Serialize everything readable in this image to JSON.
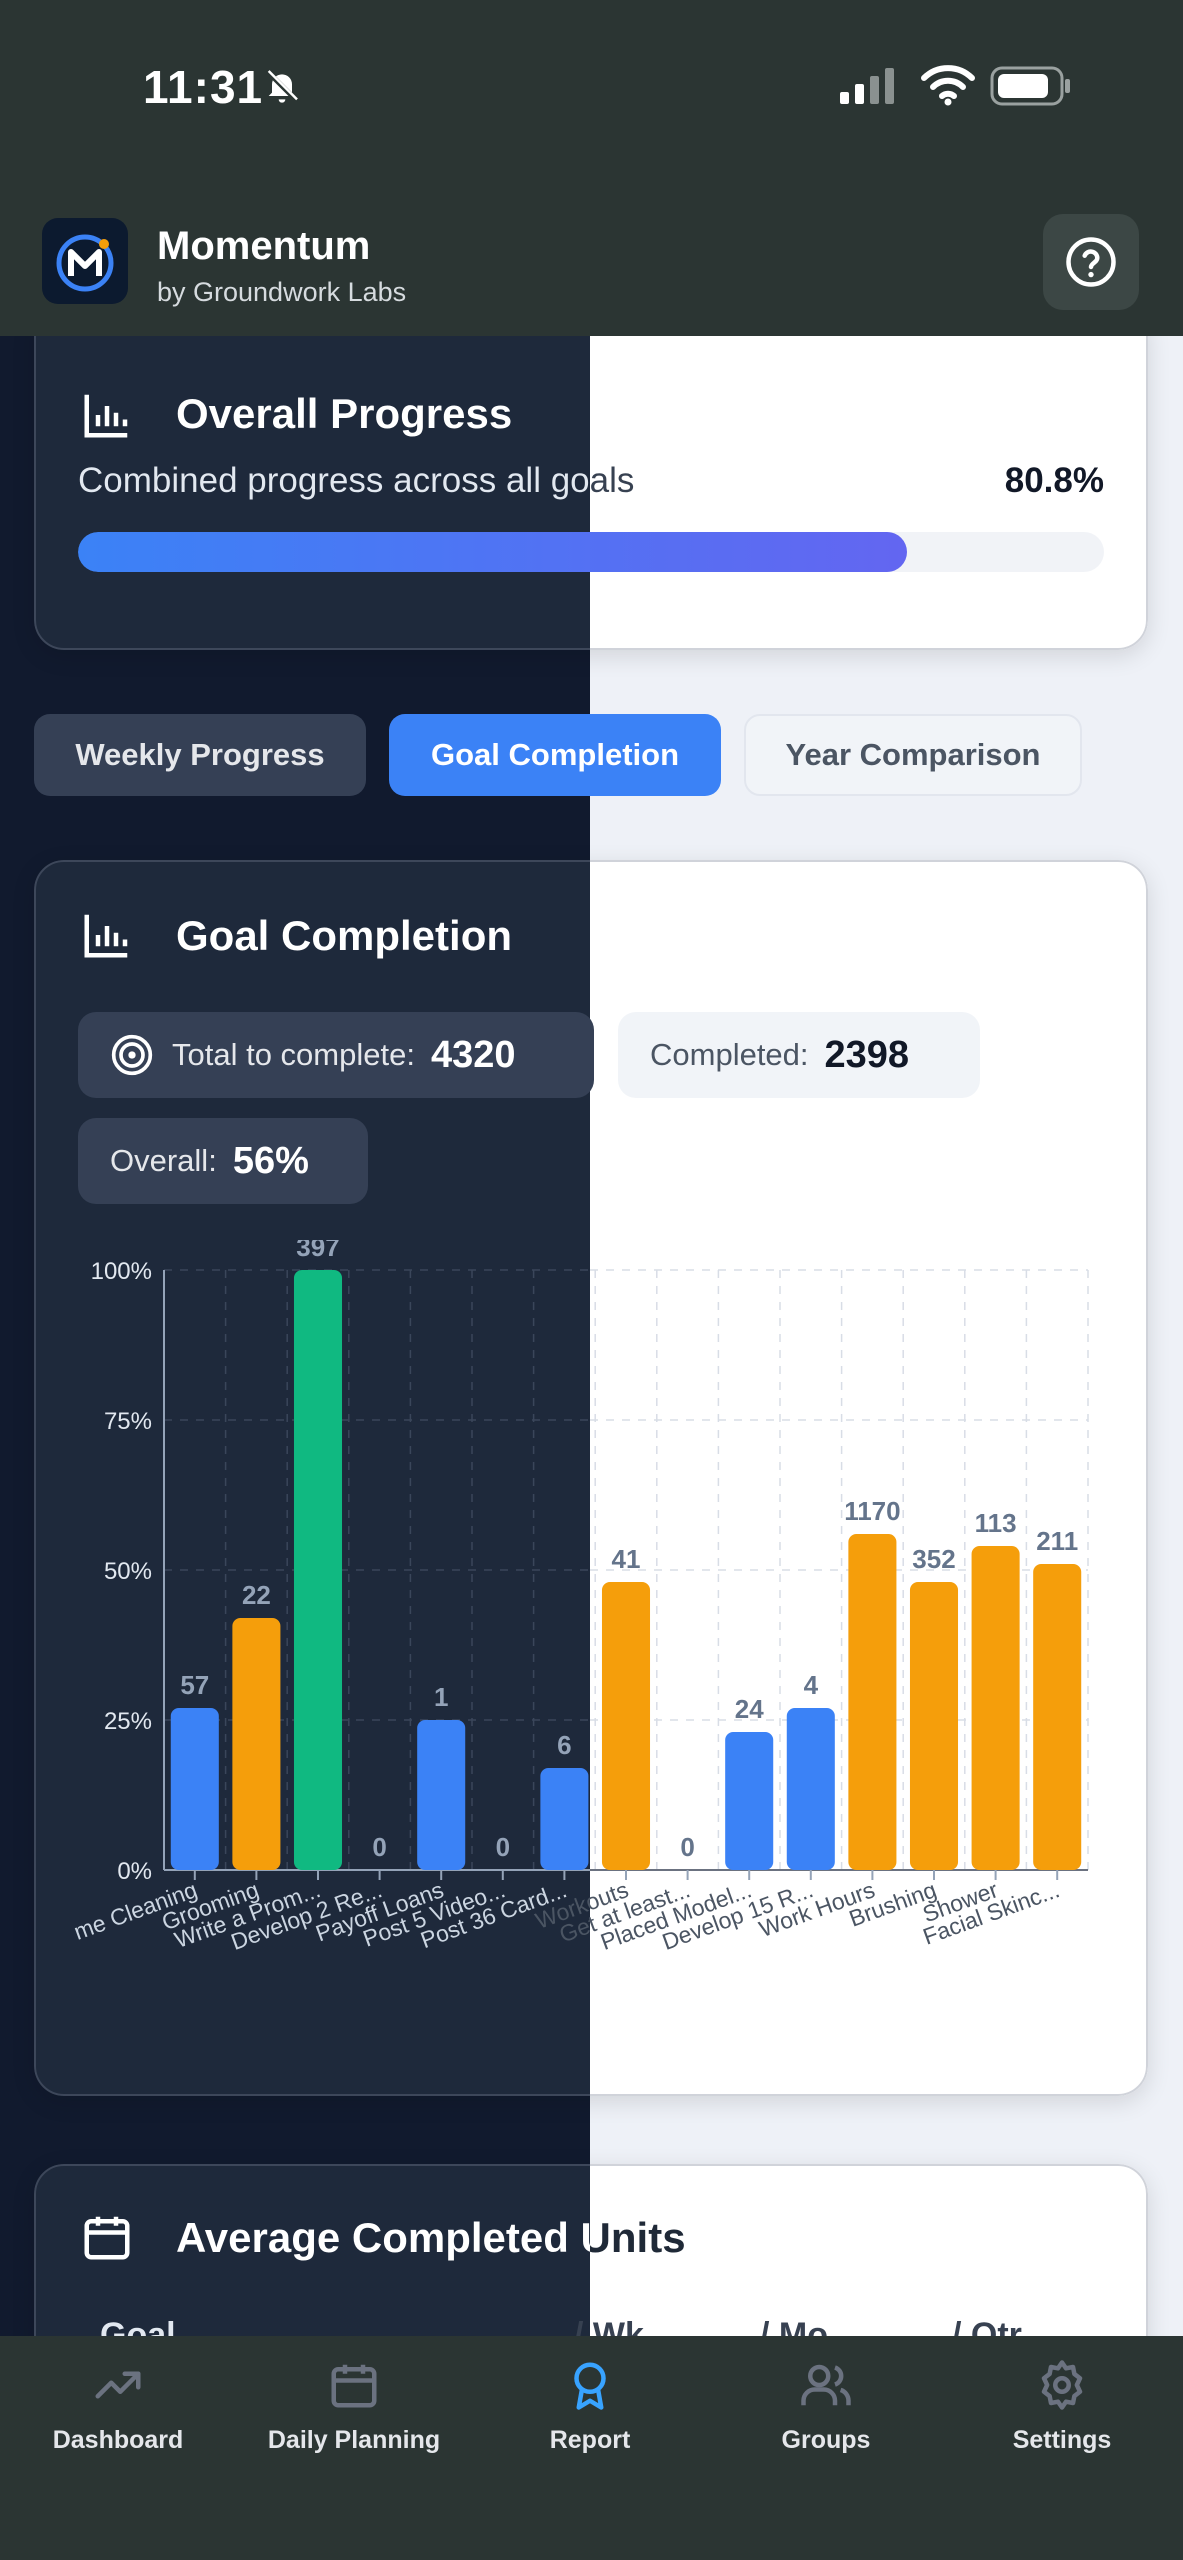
{
  "status_bar": {
    "time": "11:31"
  },
  "app": {
    "title": "Momentum",
    "subtitle": "by Groundwork Labs"
  },
  "overall_progress": {
    "title": "Overall Progress",
    "label": "Combined progress across all goals",
    "value_text": "80.8%",
    "value": 0.808
  },
  "tabs": [
    {
      "label": "Weekly Progress"
    },
    {
      "label": "Goal Completion",
      "active": true
    },
    {
      "label": "Year Comparison"
    }
  ],
  "goal_completion": {
    "title": "Goal Completion",
    "total_label": "Total to complete:",
    "total_value": "4320",
    "completed_label": "Completed:",
    "completed_value": "2398",
    "overall_label": "Overall:",
    "overall_value": "56%"
  },
  "chart_data": {
    "type": "bar",
    "title": "",
    "xlabel": "",
    "ylabel": "",
    "ylim": [
      0,
      100
    ],
    "yticks": [
      "0%",
      "25%",
      "50%",
      "75%",
      "100%"
    ],
    "categories": [
      "me Cleaning",
      "Grooming",
      "Write a Prom...",
      "Develop 2 Re...",
      "Payoff Loans",
      "Post 5 Video...",
      "Post 36 Card...",
      "Workouts",
      "Get at least...",
      "Placed Model...",
      "Develop 15 R...",
      "Work Hours",
      "Brushing",
      "Shower",
      "Facial Skinc..."
    ],
    "values": [
      27,
      42,
      100,
      0,
      25,
      0,
      17,
      48,
      0,
      23,
      27,
      56,
      48,
      54,
      51
    ],
    "data_labels": [
      "57",
      "22",
      "397",
      "0",
      "1",
      "0",
      "6",
      "41",
      "0",
      "24",
      "4",
      "1170",
      "352",
      "113",
      "211"
    ],
    "colors": [
      "#3b82f6",
      "#f59e0b",
      "#10b981",
      "#3b82f6",
      "#3b82f6",
      "#3b82f6",
      "#3b82f6",
      "#f59e0b",
      "#3b82f6",
      "#3b82f6",
      "#3b82f6",
      "#f59e0b",
      "#f59e0b",
      "#f59e0b",
      "#f59e0b"
    ],
    "grid": true
  },
  "average_units": {
    "title": "Average Completed Units",
    "columns": [
      "Goal",
      "/ Wk",
      "/ Mo",
      "/ Qtr"
    ]
  },
  "nav": [
    {
      "label": "Dashboard",
      "icon": "trending-up-icon"
    },
    {
      "label": "Daily Planning",
      "icon": "calendar-icon"
    },
    {
      "label": "Report",
      "icon": "award-icon",
      "active": true
    },
    {
      "label": "Groups",
      "icon": "users-icon"
    },
    {
      "label": "Settings",
      "icon": "gear-icon"
    }
  ],
  "colors": {
    "accent": "#3b82f6",
    "orange": "#f59e0b",
    "green": "#10b981",
    "nav_active": "#38a3ff"
  }
}
